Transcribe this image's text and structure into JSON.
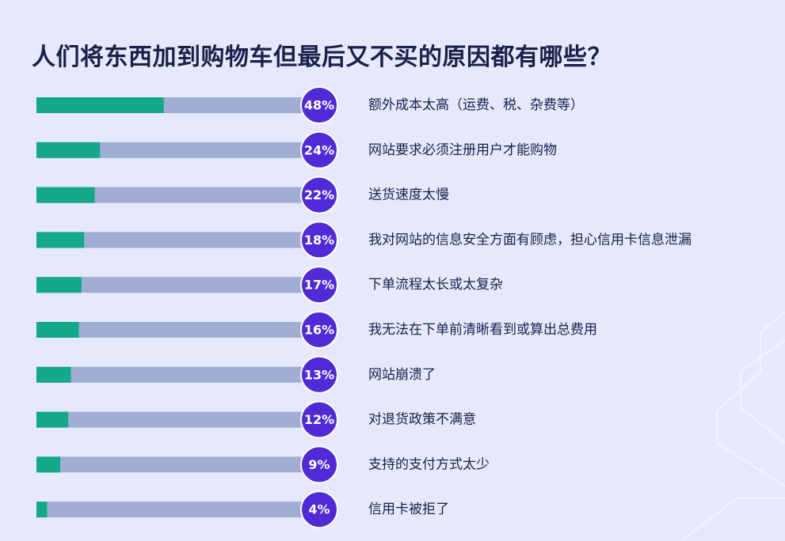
{
  "theme": {
    "background": "#e5e9fb",
    "track_color": "#a1aed4",
    "fill_color": "#14a88a",
    "badge_color": "#4f2ad6",
    "title_color": "#1c1f4a"
  },
  "chart_data": {
    "type": "bar",
    "orientation": "horizontal",
    "title": "人们将东西加到购物车但最后又不买的原因都有哪些？",
    "unit": "%",
    "xlim": [
      0,
      100
    ],
    "grid": false,
    "legend": "none",
    "categories": [
      "额外成本太高（运费、税、杂费等）",
      "网站要求必须注册用户才能购物",
      "送货速度太慢",
      "我对网站的信息安全方面有顾虑，担心信用卡信息泄漏",
      "下单流程太长或太复杂",
      "我无法在下单前清晰看到或算出总费用",
      "网站崩溃了",
      "对退货政策不满意",
      "支持的支付方式太少",
      "信用卡被拒了"
    ],
    "values": [
      48,
      24,
      22,
      18,
      17,
      16,
      13,
      12,
      9,
      4
    ],
    "value_labels": [
      "48%",
      "24%",
      "22%",
      "18%",
      "17%",
      "16%",
      "13%",
      "12%",
      "9%",
      "4%"
    ]
  }
}
